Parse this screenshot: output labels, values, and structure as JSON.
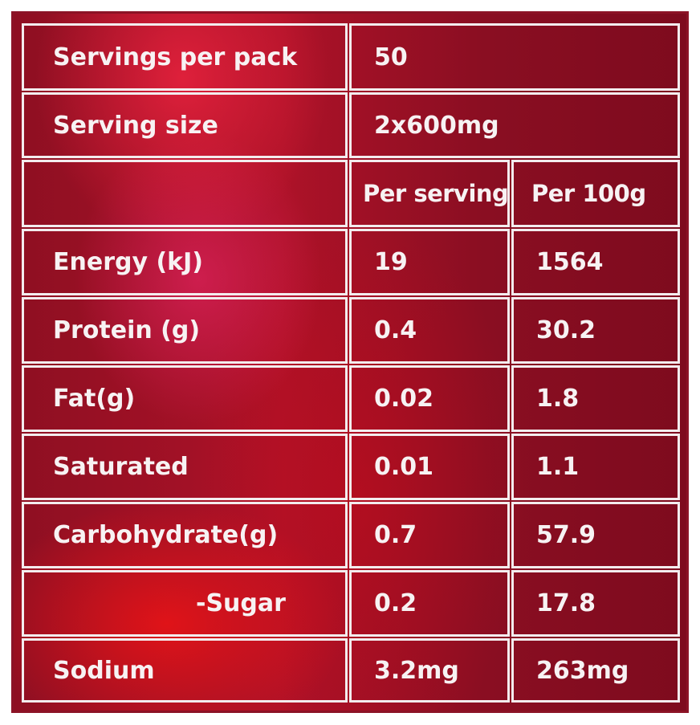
{
  "info_rows": [
    {
      "label": "Servings per pack",
      "value": "50"
    },
    {
      "label": "Serving size",
      "value": "2x600mg"
    }
  ],
  "columns": {
    "per_serving": "Per serving",
    "per_100g": "Per 100g"
  },
  "nutrients": [
    {
      "name": "Energy (kJ)",
      "per_serving": "19",
      "per_100g": "1564"
    },
    {
      "name": "Protein (g)",
      "per_serving": "0.4",
      "per_100g": "30.2"
    },
    {
      "name": "Fat(g)",
      "per_serving": "0.02",
      "per_100g": "1.8"
    },
    {
      "name": "Saturated",
      "per_serving": "0.01",
      "per_100g": "1.1"
    },
    {
      "name": "Carbohydrate(g)",
      "per_serving": "0.7",
      "per_100g": "57.9"
    },
    {
      "name": "-Sugar",
      "per_serving": "0.2",
      "per_100g": "17.8"
    },
    {
      "name": "Sodium",
      "per_serving": "3.2mg",
      "per_100g": "263mg"
    }
  ],
  "colors": {
    "background": "#8e0f22",
    "highlight": "#ff2846",
    "border": "#f3ecee",
    "text": "#f7f2f3"
  }
}
